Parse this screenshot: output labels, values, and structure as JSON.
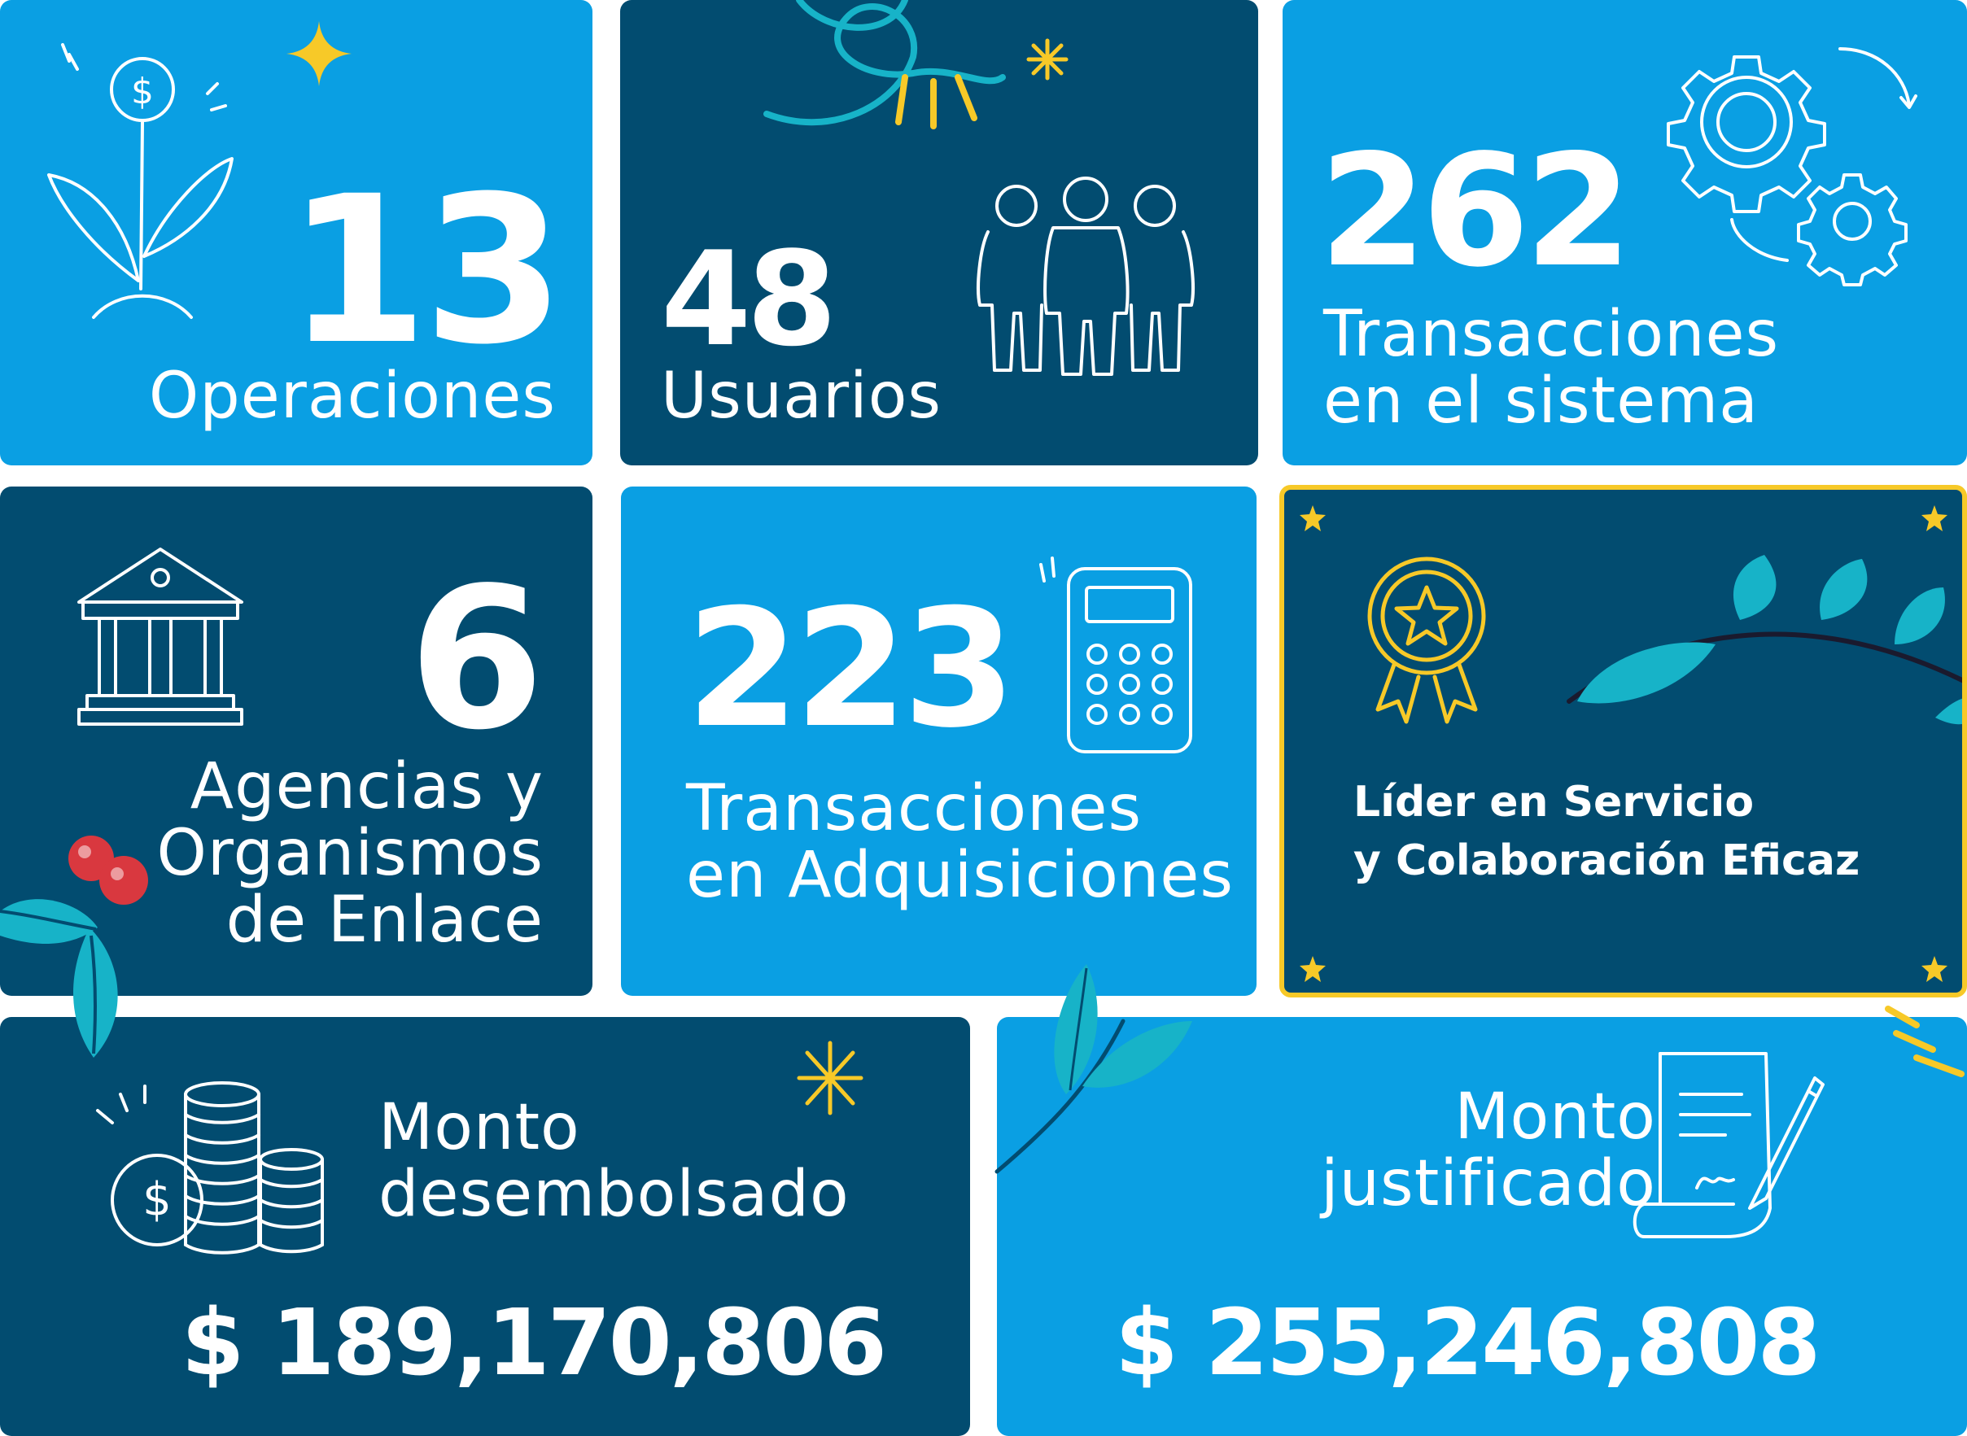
{
  "colors": {
    "light_blue": "#0a9fe3",
    "dark_blue": "#024c70",
    "accent_yellow": "#f7c928",
    "leaf_teal": "#17b3c8",
    "berry_red": "#d9383f"
  },
  "cards": {
    "operaciones": {
      "number": "13",
      "label": "Operaciones",
      "icon": "money-plant-icon"
    },
    "usuarios": {
      "number": "48",
      "label": "Usuarios",
      "icon": "people-group-icon"
    },
    "sistema": {
      "number": "262",
      "label_line1": "Transacciones",
      "label_line2": "en el sistema",
      "icon": "gears-icon"
    },
    "agencias": {
      "number": "6",
      "label_line1": "Agencias y",
      "label_line2": "Organismos",
      "label_line3": "de Enlace",
      "icon": "bank-building-icon"
    },
    "adquisiciones": {
      "number": "223",
      "label_line1": "Transacciones",
      "label_line2": "en Adquisiciones",
      "icon": "calculator-icon"
    },
    "lider": {
      "line1": "Líder en Servicio",
      "line2": "y Colaboración Eficaz",
      "icon": "award-medal-icon"
    },
    "desembolsado": {
      "label_line1": "Monto",
      "label_line2": "desembolsado",
      "amount": "$ 189,170,806",
      "icon": "coins-stack-icon"
    },
    "justificado": {
      "label_line1": "Monto",
      "label_line2": "justificado",
      "amount": "$ 255,246,808",
      "icon": "signed-document-icon"
    }
  }
}
